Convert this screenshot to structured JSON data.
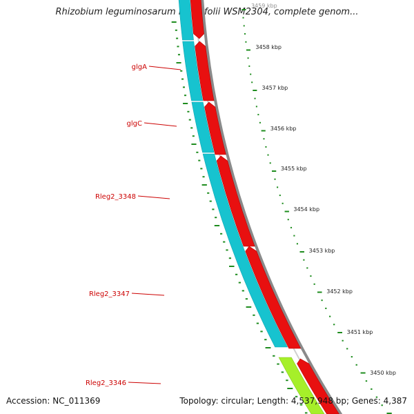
{
  "title": "Rhizobium leguminosarum bv. trifolii WSM2304, complete genom...",
  "footer": {
    "accession": "Accession: NC_011369",
    "summary": "Topology: circular; Length: 4,537,948 bp; Genes: 4,387"
  },
  "colors": {
    "forward_cds": "#e81010",
    "reverse_track": "#17c3cf",
    "rna_track": "#a6ef2a",
    "gene_label": "#cc0000",
    "tick": "#1e8c1e",
    "backbone": "#8a8a8a"
  },
  "gene_labels": [
    "glgA",
    "glgC",
    "Rleg2_3348",
    "Rleg2_3347",
    "Rleg2_3346"
  ],
  "kbp_labels": [
    "3459 kbp",
    "3458 kbp",
    "3457 kbp",
    "3456 kbp",
    "3455 kbp",
    "3454 kbp",
    "3453 kbp",
    "3452 kbp",
    "3451 kbp",
    "3450 kbp"
  ]
}
